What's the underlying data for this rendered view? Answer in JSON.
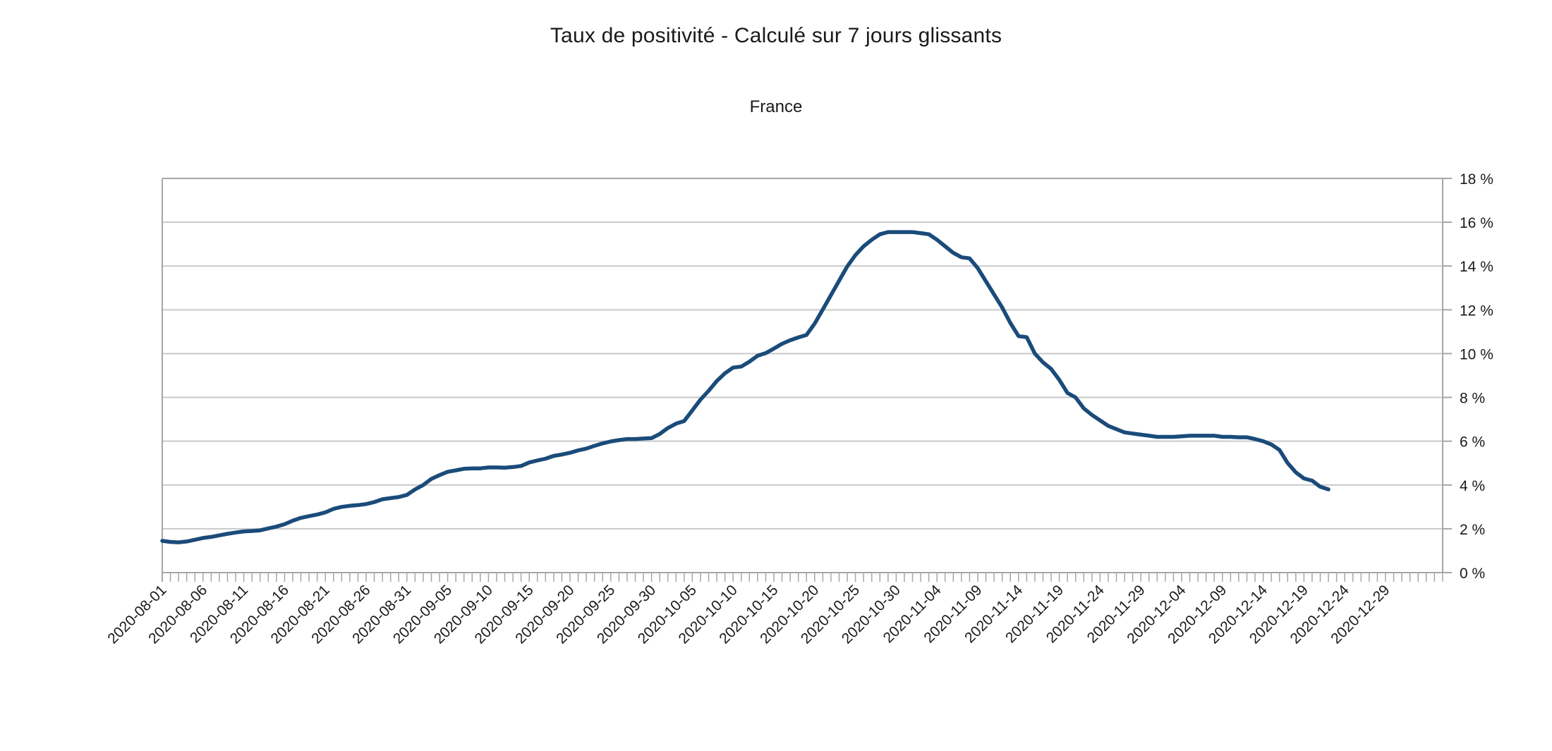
{
  "chart": {
    "title": "Taux de positivité - Calculé sur 7 jours glissants",
    "subtitle": "France",
    "chart_data": {
      "type": "line",
      "series_name": "Taux de positivité (7 jours glissants)",
      "start_date": "2020-08-01",
      "end_date": "2020-12-22",
      "y_unit": "%",
      "ylim": [
        0,
        18
      ],
      "y_tick_step": 2,
      "grid": "horizontal",
      "legend": "none",
      "y_axis_side": "right",
      "x_tick_label_rotation_deg": -45,
      "line_color": "#1a4b7a",
      "grid_color": "#c9c9c9",
      "frame_color": "#a6a6a6",
      "text_color": "#1a1a1a",
      "y_tick_labels": [
        "0 %",
        "2 %",
        "4 %",
        "6 %",
        "8 %",
        "10 %",
        "12 %",
        "14 %",
        "16 %",
        "18 %"
      ],
      "x_tick_labels": [
        "2020-08-01",
        "2020-08-06",
        "2020-08-11",
        "2020-08-16",
        "2020-08-21",
        "2020-08-26",
        "2020-08-31",
        "2020-09-05",
        "2020-09-10",
        "2020-09-15",
        "2020-09-20",
        "2020-09-25",
        "2020-09-30",
        "2020-10-05",
        "2020-10-10",
        "2020-10-15",
        "2020-10-20",
        "2020-10-25",
        "2020-10-30",
        "2020-11-04",
        "2020-11-09",
        "2020-11-14",
        "2020-11-19",
        "2020-11-24",
        "2020-11-29",
        "2020-12-04",
        "2020-12-09",
        "2020-12-14",
        "2020-12-19",
        "2020-12-24",
        "2020-12-29"
      ],
      "dates": [
        "2020-08-01",
        "2020-08-02",
        "2020-08-03",
        "2020-08-04",
        "2020-08-05",
        "2020-08-06",
        "2020-08-07",
        "2020-08-08",
        "2020-08-09",
        "2020-08-10",
        "2020-08-11",
        "2020-08-12",
        "2020-08-13",
        "2020-08-14",
        "2020-08-15",
        "2020-08-16",
        "2020-08-17",
        "2020-08-18",
        "2020-08-19",
        "2020-08-20",
        "2020-08-21",
        "2020-08-22",
        "2020-08-23",
        "2020-08-24",
        "2020-08-25",
        "2020-08-26",
        "2020-08-27",
        "2020-08-28",
        "2020-08-29",
        "2020-08-30",
        "2020-08-31",
        "2020-09-01",
        "2020-09-02",
        "2020-09-03",
        "2020-09-04",
        "2020-09-05",
        "2020-09-06",
        "2020-09-07",
        "2020-09-08",
        "2020-09-09",
        "2020-09-10",
        "2020-09-11",
        "2020-09-12",
        "2020-09-13",
        "2020-09-14",
        "2020-09-15",
        "2020-09-16",
        "2020-09-17",
        "2020-09-18",
        "2020-09-19",
        "2020-09-20",
        "2020-09-21",
        "2020-09-22",
        "2020-09-23",
        "2020-09-24",
        "2020-09-25",
        "2020-09-26",
        "2020-09-27",
        "2020-09-28",
        "2020-09-29",
        "2020-09-30",
        "2020-10-01",
        "2020-10-02",
        "2020-10-03",
        "2020-10-04",
        "2020-10-05",
        "2020-10-06",
        "2020-10-07",
        "2020-10-08",
        "2020-10-09",
        "2020-10-10",
        "2020-10-11",
        "2020-10-12",
        "2020-10-13",
        "2020-10-14",
        "2020-10-15",
        "2020-10-16",
        "2020-10-17",
        "2020-10-18",
        "2020-10-19",
        "2020-10-20",
        "2020-10-21",
        "2020-10-22",
        "2020-10-23",
        "2020-10-24",
        "2020-10-25",
        "2020-10-26",
        "2020-10-27",
        "2020-10-28",
        "2020-10-29",
        "2020-10-30",
        "2020-10-31",
        "2020-11-01",
        "2020-11-02",
        "2020-11-03",
        "2020-11-04",
        "2020-11-05",
        "2020-11-06",
        "2020-11-07",
        "2020-11-08",
        "2020-11-09",
        "2020-11-10",
        "2020-11-11",
        "2020-11-12",
        "2020-11-13",
        "2020-11-14",
        "2020-11-15",
        "2020-11-16",
        "2020-11-17",
        "2020-11-18",
        "2020-11-19",
        "2020-11-20",
        "2020-11-21",
        "2020-11-22",
        "2020-11-23",
        "2020-11-24",
        "2020-11-25",
        "2020-11-26",
        "2020-11-27",
        "2020-11-28",
        "2020-11-29",
        "2020-11-30",
        "2020-12-01",
        "2020-12-02",
        "2020-12-03",
        "2020-12-04",
        "2020-12-05",
        "2020-12-06",
        "2020-12-07",
        "2020-12-08",
        "2020-12-09",
        "2020-12-10",
        "2020-12-11",
        "2020-12-12",
        "2020-12-13",
        "2020-12-14",
        "2020-12-15",
        "2020-12-16",
        "2020-12-17",
        "2020-12-18",
        "2020-12-19",
        "2020-12-20",
        "2020-12-21",
        "2020-12-22"
      ],
      "values": [
        1.45,
        1.4,
        1.38,
        1.42,
        1.5,
        1.58,
        1.63,
        1.7,
        1.77,
        1.83,
        1.88,
        1.9,
        1.93,
        2.02,
        2.1,
        2.21,
        2.37,
        2.5,
        2.58,
        2.65,
        2.75,
        2.91,
        3.0,
        3.05,
        3.08,
        3.13,
        3.22,
        3.35,
        3.4,
        3.45,
        3.55,
        3.8,
        4.0,
        4.28,
        4.45,
        4.6,
        4.67,
        4.74,
        4.76,
        4.76,
        4.8,
        4.8,
        4.79,
        4.82,
        4.87,
        5.03,
        5.12,
        5.2,
        5.33,
        5.39,
        5.47,
        5.58,
        5.66,
        5.79,
        5.9,
        5.99,
        6.05,
        6.1,
        6.1,
        6.12,
        6.14,
        6.33,
        6.6,
        6.8,
        6.92,
        7.41,
        7.9,
        8.3,
        8.75,
        9.1,
        9.36,
        9.41,
        9.63,
        9.9,
        10.02,
        10.23,
        10.45,
        10.61,
        10.74,
        10.85,
        11.37,
        12.02,
        12.67,
        13.33,
        13.98,
        14.5,
        14.9,
        15.2,
        15.45,
        15.55,
        15.55,
        15.55,
        15.55,
        15.5,
        15.45,
        15.2,
        14.9,
        14.6,
        14.4,
        14.35,
        13.9,
        13.3,
        12.7,
        12.1,
        11.4,
        10.8,
        10.75,
        10.0,
        9.6,
        9.3,
        8.8,
        8.2,
        8.0,
        7.5,
        7.2,
        6.95,
        6.7,
        6.55,
        6.4,
        6.35,
        6.3,
        6.25,
        6.2,
        6.2,
        6.2,
        6.22,
        6.25,
        6.25,
        6.25,
        6.25,
        6.2,
        6.2,
        6.18,
        6.18,
        6.1,
        6.0,
        5.85,
        5.6,
        5.0,
        4.58,
        4.3,
        4.2,
        3.92,
        3.8
      ]
    }
  }
}
